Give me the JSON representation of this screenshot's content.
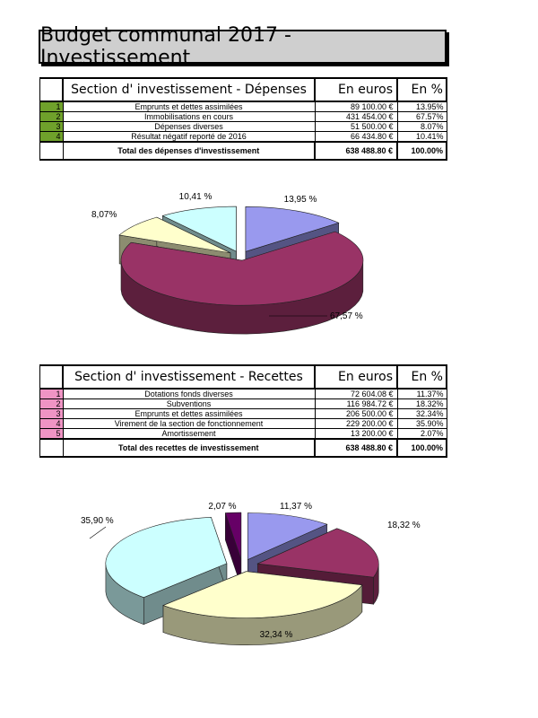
{
  "title": "Budget communal 2017 - Investissement",
  "depenses": {
    "header": {
      "section": "Section d' investissement - Dépenses",
      "euros": "En euros",
      "pct": "En %"
    },
    "rows": [
      {
        "num": "1",
        "label": "Emprunts et dettes assimilées",
        "amount": "89 100.00 €",
        "pct": "13.95%"
      },
      {
        "num": "2",
        "label": "Immobilisations en cours",
        "amount": "431 454.00 €",
        "pct": "67.57%"
      },
      {
        "num": "3",
        "label": "Dépenses diverses",
        "amount": "51 500.00 €",
        "pct": "8.07%"
      },
      {
        "num": "4",
        "label": "Résultat négatif reporté de 2016",
        "amount": "66 434.80 €",
        "pct": "10.41%"
      }
    ],
    "total": {
      "label": "Total des dépenses d'investissement",
      "amount": "638 488.80 €",
      "pct": "100.00%"
    },
    "accent": "#6fa12b"
  },
  "recettes": {
    "header": {
      "section": "Section d' investissement - Recettes",
      "euros": "En euros",
      "pct": "En %"
    },
    "rows": [
      {
        "num": "1",
        "label": "Dotations fonds diverses",
        "amount": "72 604.08 €",
        "pct": "11.37%"
      },
      {
        "num": "2",
        "label": "Subventions",
        "amount": "116 984.72 €",
        "pct": "18.32%"
      },
      {
        "num": "3",
        "label": "Emprunts et dettes assimilées",
        "amount": "206 500.00 €",
        "pct": "32.34%"
      },
      {
        "num": "4",
        "label": "Virement de la section de fonctionnement",
        "amount": "229 200.00 €",
        "pct": "35.90%"
      },
      {
        "num": "5",
        "label": "Amortissement",
        "amount": "13 200.00 €",
        "pct": "2.07%"
      }
    ],
    "total": {
      "label": "Total des recettes de investissement",
      "amount": "638 488.80 €",
      "pct": "100.00%"
    },
    "accent": "#ef94c4"
  },
  "chart_data": [
    {
      "type": "pie",
      "categories": [
        "Emprunts et dettes assimilées",
        "Immobilisations en cours",
        "Dépenses diverses",
        "Résultat négatif reporté de 2016"
      ],
      "values": [
        13.95,
        67.57,
        8.07,
        10.41
      ],
      "labels": [
        "13,95 %",
        "67,57 %",
        "8,07%",
        "10,41 %"
      ],
      "colors": [
        "#9999ee",
        "#993366",
        "#ffffcc",
        "#ccffff"
      ]
    },
    {
      "type": "pie",
      "categories": [
        "Dotations fonds diverses",
        "Subventions",
        "Emprunts et dettes assimilées",
        "Virement de la section de fonctionnement",
        "Amortissement"
      ],
      "values": [
        11.37,
        18.32,
        32.34,
        35.9,
        2.07
      ],
      "labels": [
        "11,37 %",
        "18,32 %",
        "32,34 %",
        "35,90 %",
        "2,07 %"
      ],
      "colors": [
        "#9999ee",
        "#993366",
        "#ffffcc",
        "#ccffff",
        "#660066"
      ]
    }
  ]
}
